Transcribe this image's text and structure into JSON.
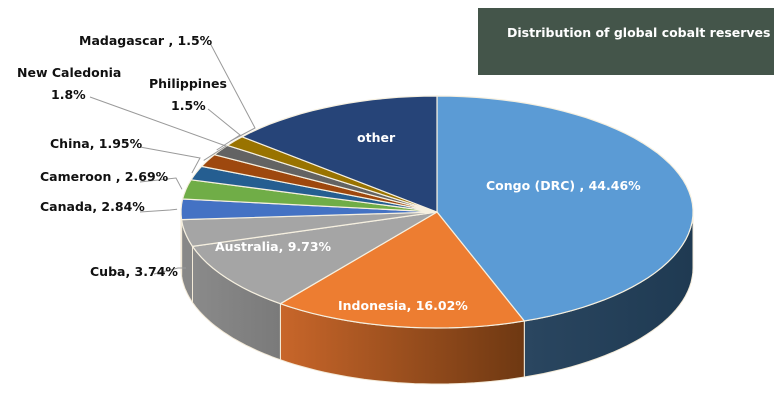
{
  "chart_data": {
    "type": "pie",
    "title": "Distribution of global cobalt reserves",
    "style": "3d-exploded-none",
    "categories": [
      "Congo (DRC)",
      "Indonesia",
      "Australia",
      "Cuba",
      "Canada",
      "Cameroon",
      "China",
      "New Caledonia",
      "Philippines",
      "Madagascar",
      "other"
    ],
    "values": [
      44.46,
      16.02,
      9.73,
      3.74,
      2.84,
      2.69,
      1.95,
      1.8,
      1.5,
      1.5,
      13.77
    ],
    "value_labels_shown": [
      "44.46%",
      "16.02%",
      "9.73%",
      "3.74%",
      "2.84%",
      "2.69%",
      "1.95%",
      "1.8%",
      "1.5%",
      "1.5%",
      ""
    ],
    "colors": [
      "#5b9bd5",
      "#ed7d31",
      "#a5a5a5",
      "#a5a5a5",
      "#4472c4",
      "#70ad47",
      "#255e91",
      "#9e480e",
      "#636363",
      "#997300",
      "#264478"
    ],
    "start_angle_deg": 0,
    "direction": "clockwise",
    "legend": "none"
  },
  "title": "Distribution of global cobalt reserves",
  "labels": {
    "congo": "Congo (DRC) , 44.46%",
    "indonesia": "Indonesia, 16.02%",
    "australia": "Australia, 9.73%",
    "other": "other",
    "cuba": "Cuba, 3.74%",
    "canada": "Canada, 2.84%",
    "cameroon": "Cameroon , 2.69%",
    "china": "China, 1.95%",
    "new_caledonia_name": "New Caledonia",
    "new_caledonia_value": "1.8%",
    "philippines_name": "Philippines",
    "philippines_value": "1.5%",
    "madagascar": "Madagascar , 1.5%"
  }
}
